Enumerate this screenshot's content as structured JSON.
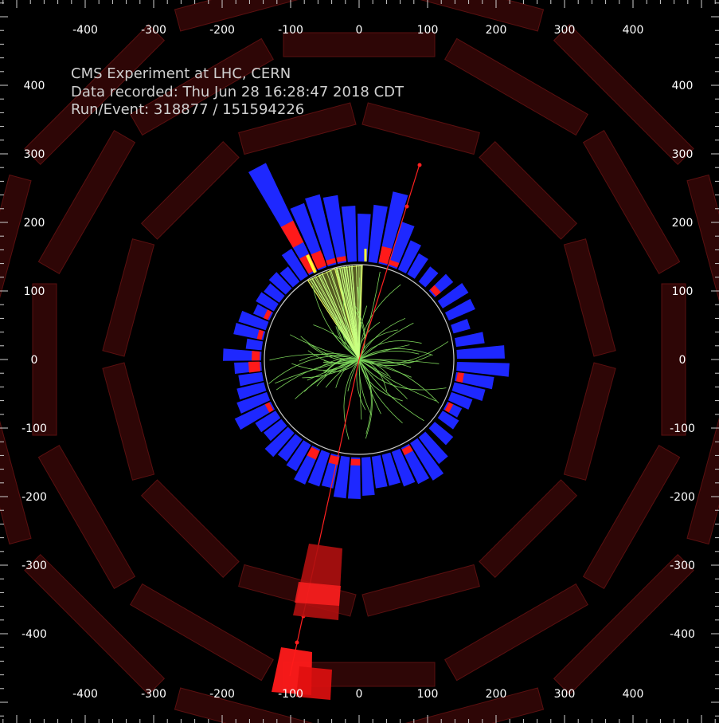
{
  "event_info": {
    "experiment": "CMS Experiment at LHC, CERN",
    "recorded": "Data recorded: Thu Jun 28 16:28:47 2018 CDT",
    "run_event": "Run/Event: 318877 / 151594226"
  },
  "axes": {
    "top_labels": [
      "-400",
      "-300",
      "-200",
      "-100",
      "0",
      "100",
      "200",
      "300",
      "400"
    ],
    "bottom_labels": [
      "-400",
      "-300",
      "-200",
      "-100",
      "0",
      "100",
      "200",
      "300",
      "400"
    ],
    "left_labels": [
      "400",
      "300",
      "200",
      "100",
      "0",
      "-100",
      "-200",
      "-300",
      "-400"
    ],
    "right_labels": [
      "400",
      "300",
      "200",
      "100",
      "0",
      "-100",
      "-200",
      "-300",
      "-400"
    ]
  },
  "colors": {
    "background": "#000000",
    "muon_chamber": "#2e0606",
    "muon_chamber_edge": "#5a1010",
    "hcal_tower": "#1e28ff",
    "ecal_tower": "#ff1a1a",
    "track": "#7cd45a",
    "jet_cone": "#f0ff60",
    "muon_track": "#ff2020",
    "tracker_boundary": "#c8c8c8",
    "text": "#d0d0d0"
  }
}
